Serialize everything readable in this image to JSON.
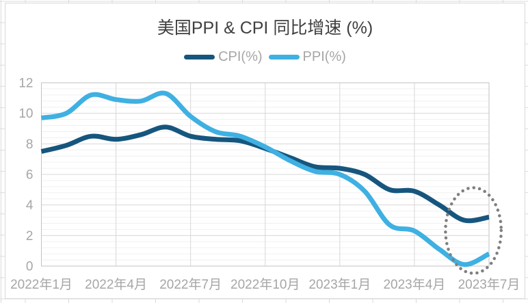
{
  "chart_data": {
    "type": "line",
    "title": "美国PPI & CPI 同比增速 (%)",
    "xlabel": "",
    "ylabel": "",
    "categories": [
      "2022年1月",
      "2022年2月",
      "2022年3月",
      "2022年4月",
      "2022年5月",
      "2022年6月",
      "2022年7月",
      "2022年8月",
      "2022年9月",
      "2022年10月",
      "2022年11月",
      "2022年12月",
      "2023年1月",
      "2023年2月",
      "2023年3月",
      "2023年4月",
      "2023年5月",
      "2023年6月",
      "2023年7月"
    ],
    "x_tick_labels": [
      "2022年1月",
      "2022年4月",
      "2022年7月",
      "2022年10月",
      "2023年1月",
      "2023年4月",
      "2023年7月"
    ],
    "series": [
      {
        "key": "cpi",
        "name": "CPI(%)",
        "color": "#16567E",
        "values": [
          7.5,
          7.9,
          8.5,
          8.3,
          8.6,
          9.1,
          8.5,
          8.3,
          8.2,
          7.7,
          7.1,
          6.5,
          6.4,
          6.0,
          5.0,
          4.9,
          4.0,
          3.0,
          3.2
        ]
      },
      {
        "key": "ppi",
        "name": "PPI(%)",
        "color": "#3FB0E2",
        "values": [
          9.7,
          10.0,
          11.2,
          10.9,
          10.8,
          11.3,
          9.8,
          8.8,
          8.5,
          7.8,
          6.9,
          6.2,
          6.0,
          4.9,
          2.7,
          2.3,
          1.1,
          0.1,
          0.8
        ]
      }
    ],
    "ylim": [
      0,
      12
    ],
    "y_ticks": [
      0,
      2,
      4,
      6,
      8,
      10,
      12
    ],
    "y_minor_step": 0.4,
    "grid": true,
    "smooth": true,
    "legend_position": "top",
    "annotation": {
      "type": "dotted-ellipse",
      "color": "#7F7F7F",
      "cx_index": 17.37,
      "cy_value": 2.33,
      "rx_index": 1.12,
      "ry_value": 2.8
    },
    "colors": {
      "title_text": "#3F3F3F",
      "axis_text": "#A6A6A6",
      "legend_text": "#A6A6A6",
      "major_grid": "#D7D7D7",
      "minor_grid": "#F0F0F0",
      "plot_border": "#C2C2C2",
      "sheet_grid": "#DBDBDB"
    }
  }
}
